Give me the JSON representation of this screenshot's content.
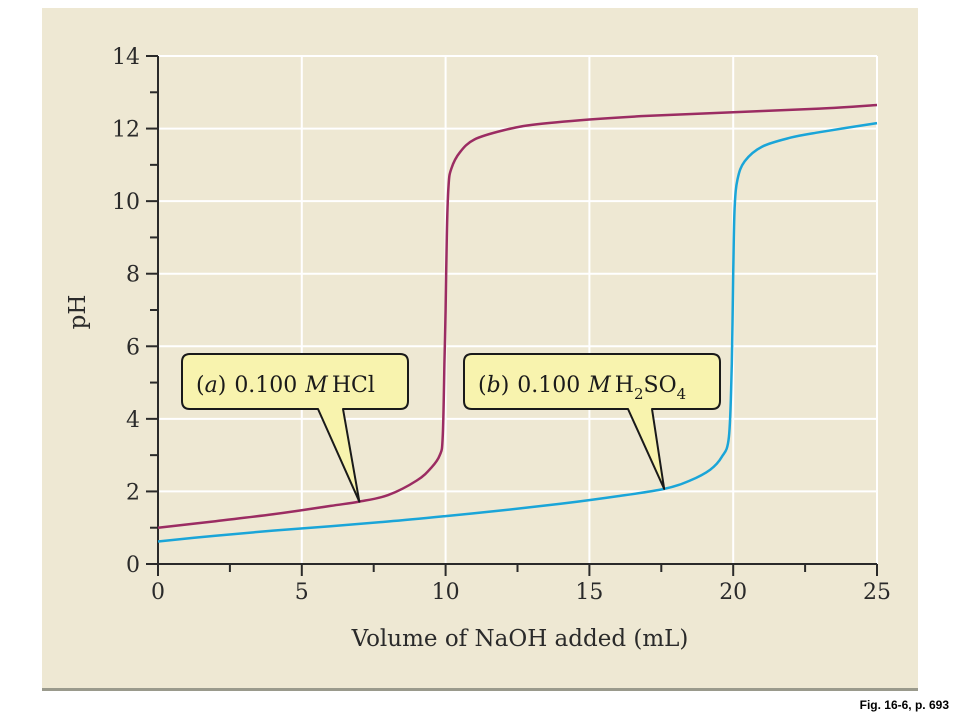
{
  "caption": "Fig. 16-6, p. 693",
  "chart_data": {
    "type": "line",
    "xlabel": "Volume of NaOH added (mL)",
    "ylabel": "pH",
    "xlim": [
      0,
      25
    ],
    "ylim": [
      0,
      14
    ],
    "xticks": [
      0,
      5,
      10,
      15,
      20,
      25
    ],
    "yticks": [
      0,
      2,
      4,
      6,
      8,
      10,
      12,
      14
    ],
    "grid": true,
    "series": [
      {
        "name": "(a) 0.100 M HCl",
        "label_italic": "M",
        "color": "#9b2c62",
        "x": [
          0,
          2,
          4,
          6,
          7,
          8,
          9,
          9.5,
          9.8,
          9.9,
          9.96,
          10.0,
          10.04,
          10.1,
          10.2,
          10.5,
          11,
          12,
          13,
          15,
          17,
          20,
          23,
          25
        ],
        "y": [
          1.0,
          1.18,
          1.37,
          1.6,
          1.72,
          1.9,
          2.3,
          2.65,
          3.0,
          3.5,
          5.5,
          7.0,
          9.0,
          10.4,
          10.9,
          11.35,
          11.7,
          11.95,
          12.1,
          12.25,
          12.35,
          12.45,
          12.55,
          12.65
        ]
      },
      {
        "name": "(b) 0.100 M H2SO4",
        "label_italic": "M",
        "color": "#1aa5d8",
        "x": [
          0,
          2,
          4,
          6,
          8,
          10,
          12,
          14,
          16,
          17.6,
          18.5,
          19.2,
          19.6,
          19.85,
          19.95,
          20.0,
          20.05,
          20.15,
          20.4,
          21,
          22,
          23,
          25
        ],
        "y": [
          0.62,
          0.78,
          0.92,
          1.04,
          1.17,
          1.32,
          1.48,
          1.66,
          1.87,
          2.07,
          2.3,
          2.6,
          2.95,
          3.5,
          5.5,
          8.0,
          9.8,
          10.6,
          11.1,
          11.5,
          11.75,
          11.9,
          12.15
        ]
      }
    ],
    "annotations": [
      {
        "part": "(",
        "letter": "a",
        "close": ")",
        "conc": "0.100",
        "molar": "M",
        "species": "HCl",
        "pointer_x": 7.0,
        "pointer_y": 1.72
      },
      {
        "part": "(",
        "letter": "b",
        "close": ")",
        "conc": "0.100",
        "molar": "M",
        "species_main": "H",
        "sub1": "2",
        "species_mid": "SO",
        "sub2": "4",
        "pointer_x": 17.6,
        "pointer_y": 2.07
      }
    ]
  }
}
